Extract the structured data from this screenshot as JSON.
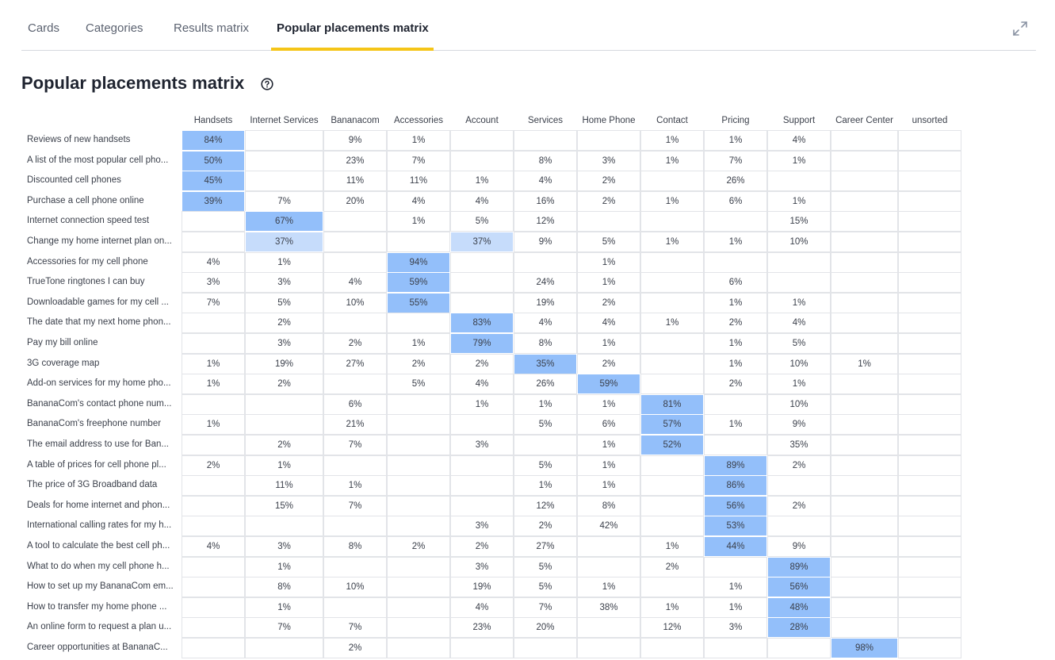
{
  "tabs": [
    {
      "label": "Cards",
      "active": false
    },
    {
      "label": "Categories",
      "active": false
    },
    {
      "label": "Results matrix",
      "active": false
    },
    {
      "label": "Popular placements matrix",
      "active": true
    }
  ],
  "page_title": "Popular placements matrix",
  "colors": {
    "accent": "#f5c518",
    "strong": "#93bffa",
    "light": "#c6dcfb"
  },
  "columns": [
    "Handsets",
    "Internet Services",
    "Bananacom",
    "Accessories",
    "Account",
    "Services",
    "Home Phone",
    "Contact",
    "Pricing",
    "Support",
    "Career Center",
    "unsorted"
  ],
  "rows": [
    {
      "label": "Reviews of new handsets",
      "values": [
        "84%",
        "",
        "9%",
        "1%",
        "",
        "",
        "",
        "1%",
        "1%",
        "4%",
        "",
        ""
      ],
      "highlight": [
        0
      ],
      "light": []
    },
    {
      "label": "A list of the most popular cell pho...",
      "values": [
        "50%",
        "",
        "23%",
        "7%",
        "",
        "8%",
        "3%",
        "1%",
        "7%",
        "1%",
        "",
        ""
      ],
      "highlight": [
        0
      ],
      "light": []
    },
    {
      "label": "Discounted cell phones",
      "values": [
        "45%",
        "",
        "11%",
        "11%",
        "1%",
        "4%",
        "2%",
        "",
        "26%",
        "",
        "",
        ""
      ],
      "highlight": [
        0
      ],
      "light": []
    },
    {
      "label": "Purchase a cell phone online",
      "values": [
        "39%",
        "7%",
        "20%",
        "4%",
        "4%",
        "16%",
        "2%",
        "1%",
        "6%",
        "1%",
        "",
        ""
      ],
      "highlight": [
        0
      ],
      "light": []
    },
    {
      "label": "Internet connection speed test",
      "values": [
        "",
        "67%",
        "",
        "1%",
        "5%",
        "12%",
        "",
        "",
        "",
        "15%",
        "",
        ""
      ],
      "highlight": [
        1
      ],
      "light": []
    },
    {
      "label": "Change my home internet plan on...",
      "values": [
        "",
        "37%",
        "",
        "",
        "37%",
        "9%",
        "5%",
        "1%",
        "1%",
        "10%",
        "",
        ""
      ],
      "highlight": [],
      "light": [
        1,
        4
      ]
    },
    {
      "label": "Accessories for my cell phone",
      "values": [
        "4%",
        "1%",
        "",
        "94%",
        "",
        "",
        "1%",
        "",
        "",
        "",
        "",
        ""
      ],
      "highlight": [
        3
      ],
      "light": []
    },
    {
      "label": "TrueTone ringtones I can buy",
      "values": [
        "3%",
        "3%",
        "4%",
        "59%",
        "",
        "24%",
        "1%",
        "",
        "6%",
        "",
        "",
        ""
      ],
      "highlight": [
        3
      ],
      "light": []
    },
    {
      "label": "Downloadable games for my cell ...",
      "values": [
        "7%",
        "5%",
        "10%",
        "55%",
        "",
        "19%",
        "2%",
        "",
        "1%",
        "1%",
        "",
        ""
      ],
      "highlight": [
        3
      ],
      "light": []
    },
    {
      "label": "The date that my next home phon...",
      "values": [
        "",
        "2%",
        "",
        "",
        "83%",
        "4%",
        "4%",
        "1%",
        "2%",
        "4%",
        "",
        ""
      ],
      "highlight": [
        4
      ],
      "light": []
    },
    {
      "label": "Pay my bill online",
      "values": [
        "",
        "3%",
        "2%",
        "1%",
        "79%",
        "8%",
        "1%",
        "",
        "1%",
        "5%",
        "",
        ""
      ],
      "highlight": [
        4
      ],
      "light": []
    },
    {
      "label": "3G coverage map",
      "values": [
        "1%",
        "19%",
        "27%",
        "2%",
        "2%",
        "35%",
        "2%",
        "",
        "1%",
        "10%",
        "1%",
        ""
      ],
      "highlight": [
        5
      ],
      "light": []
    },
    {
      "label": "Add-on services for my home pho...",
      "values": [
        "1%",
        "2%",
        "",
        "5%",
        "4%",
        "26%",
        "59%",
        "",
        "2%",
        "1%",
        "",
        ""
      ],
      "highlight": [
        6
      ],
      "light": []
    },
    {
      "label": "BananaCom's contact phone num...",
      "values": [
        "",
        "",
        "6%",
        "",
        "1%",
        "1%",
        "1%",
        "81%",
        "",
        "10%",
        "",
        ""
      ],
      "highlight": [
        7
      ],
      "light": []
    },
    {
      "label": "BananaCom's freephone number",
      "values": [
        "1%",
        "",
        "21%",
        "",
        "",
        "5%",
        "6%",
        "57%",
        "1%",
        "9%",
        "",
        ""
      ],
      "highlight": [
        7
      ],
      "light": []
    },
    {
      "label": "The email address to use for Ban...",
      "values": [
        "",
        "2%",
        "7%",
        "",
        "3%",
        "",
        "1%",
        "52%",
        "",
        "35%",
        "",
        ""
      ],
      "highlight": [
        7
      ],
      "light": []
    },
    {
      "label": "A table of prices for cell phone pl...",
      "values": [
        "2%",
        "1%",
        "",
        "",
        "",
        "5%",
        "1%",
        "",
        "89%",
        "2%",
        "",
        ""
      ],
      "highlight": [
        8
      ],
      "light": []
    },
    {
      "label": "The price of 3G Broadband data",
      "values": [
        "",
        "11%",
        "1%",
        "",
        "",
        "1%",
        "1%",
        "",
        "86%",
        "",
        "",
        ""
      ],
      "highlight": [
        8
      ],
      "light": []
    },
    {
      "label": "Deals for home internet and phon...",
      "values": [
        "",
        "15%",
        "7%",
        "",
        "",
        "12%",
        "8%",
        "",
        "56%",
        "2%",
        "",
        ""
      ],
      "highlight": [
        8
      ],
      "light": []
    },
    {
      "label": "International calling rates for my h...",
      "values": [
        "",
        "",
        "",
        "",
        "3%",
        "2%",
        "42%",
        "",
        "53%",
        "",
        "",
        ""
      ],
      "highlight": [
        8
      ],
      "light": []
    },
    {
      "label": "A tool to calculate the best cell ph...",
      "values": [
        "4%",
        "3%",
        "8%",
        "2%",
        "2%",
        "27%",
        "",
        "1%",
        "44%",
        "9%",
        "",
        ""
      ],
      "highlight": [
        8
      ],
      "light": []
    },
    {
      "label": "What to do when my cell phone h...",
      "values": [
        "",
        "1%",
        "",
        "",
        "3%",
        "5%",
        "",
        "2%",
        "",
        "89%",
        "",
        ""
      ],
      "highlight": [
        9
      ],
      "light": []
    },
    {
      "label": "How to set up my BananaCom em...",
      "values": [
        "",
        "8%",
        "10%",
        "",
        "19%",
        "5%",
        "1%",
        "",
        "1%",
        "56%",
        "",
        ""
      ],
      "highlight": [
        9
      ],
      "light": []
    },
    {
      "label": "How to transfer my home phone ...",
      "values": [
        "",
        "1%",
        "",
        "",
        "4%",
        "7%",
        "38%",
        "1%",
        "1%",
        "48%",
        "",
        ""
      ],
      "highlight": [
        9
      ],
      "light": []
    },
    {
      "label": "An online form to request a plan u...",
      "values": [
        "",
        "7%",
        "7%",
        "",
        "23%",
        "20%",
        "",
        "12%",
        "3%",
        "28%",
        "",
        ""
      ],
      "highlight": [
        9
      ],
      "light": []
    },
    {
      "label": "Career opportunities at BananaC...",
      "values": [
        "",
        "",
        "2%",
        "",
        "",
        "",
        "",
        "",
        "",
        "",
        "98%",
        ""
      ],
      "highlight": [
        10
      ],
      "light": []
    }
  ]
}
